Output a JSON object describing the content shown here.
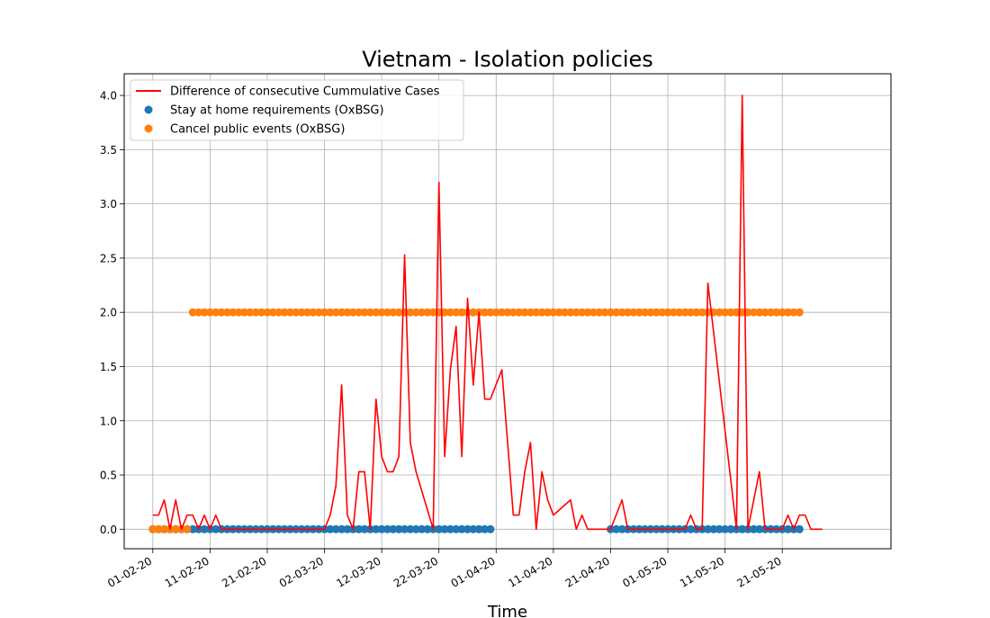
{
  "chart_data": {
    "type": "line",
    "title": "Vietnam - Isolation policies",
    "xlabel": "Time",
    "ylabel": "",
    "ylim": [
      -0.18,
      4.2
    ],
    "yticks": [
      0.0,
      0.5,
      1.0,
      1.5,
      2.0,
      2.5,
      3.0,
      3.5,
      4.0
    ],
    "ytick_labels": [
      "0.0",
      "0.5",
      "1.0",
      "1.5",
      "2.0",
      "2.5",
      "3.0",
      "3.5",
      "4.0"
    ],
    "xlim": [
      "2020-01-27",
      "2020-06-09"
    ],
    "xticks": [
      "2020-02-01",
      "2020-02-11",
      "2020-02-21",
      "2020-03-02",
      "2020-03-12",
      "2020-03-22",
      "2020-04-01",
      "2020-04-11",
      "2020-04-21",
      "2020-05-01",
      "2020-05-11",
      "2020-05-21"
    ],
    "xtick_labels": [
      "01-02-20",
      "11-02-20",
      "21-02-20",
      "02-03-20",
      "12-03-20",
      "22-03-20",
      "01-04-20",
      "11-04-20",
      "21-04-20",
      "01-05-20",
      "11-05-20",
      "21-05-20"
    ],
    "grid": true,
    "legend_position": "top-left",
    "series": [
      {
        "name": "Difference of consecutive Cummulative Cases",
        "kind": "line",
        "color": "#ff0000",
        "x": [
          "2020-02-01",
          "2020-02-02",
          "2020-02-03",
          "2020-02-04",
          "2020-02-05",
          "2020-02-06",
          "2020-02-07",
          "2020-02-08",
          "2020-02-09",
          "2020-02-10",
          "2020-02-11",
          "2020-02-12",
          "2020-02-13",
          "2020-02-14",
          "2020-02-29",
          "2020-03-01",
          "2020-03-02",
          "2020-03-03",
          "2020-03-04",
          "2020-03-05",
          "2020-03-06",
          "2020-03-07",
          "2020-03-08",
          "2020-03-09",
          "2020-03-10",
          "2020-03-11",
          "2020-03-12",
          "2020-03-13",
          "2020-03-14",
          "2020-03-15",
          "2020-03-16",
          "2020-03-17",
          "2020-03-18",
          "2020-03-21",
          "2020-03-22",
          "2020-03-23",
          "2020-03-24",
          "2020-03-25",
          "2020-03-26",
          "2020-03-27",
          "2020-03-28",
          "2020-03-29",
          "2020-03-30",
          "2020-03-31",
          "2020-04-02",
          "2020-04-04",
          "2020-04-05",
          "2020-04-06",
          "2020-04-07",
          "2020-04-08",
          "2020-04-09",
          "2020-04-10",
          "2020-04-11",
          "2020-04-14",
          "2020-04-15",
          "2020-04-16",
          "2020-04-17",
          "2020-04-18",
          "2020-04-21",
          "2020-04-23",
          "2020-04-24",
          "2020-05-04",
          "2020-05-05",
          "2020-05-06",
          "2020-05-07",
          "2020-05-08",
          "2020-05-13",
          "2020-05-14",
          "2020-05-15",
          "2020-05-17",
          "2020-05-18",
          "2020-05-21",
          "2020-05-22",
          "2020-05-23",
          "2020-05-24",
          "2020-05-25",
          "2020-05-26",
          "2020-05-27",
          "2020-05-28"
        ],
        "y": [
          0.13,
          0.13,
          0.27,
          0,
          0.27,
          0,
          0.13,
          0.13,
          0,
          0.13,
          0,
          0.13,
          0,
          0,
          0,
          0,
          0,
          0.13,
          0.4,
          1.33,
          0.13,
          0,
          0.53,
          0.53,
          0,
          1.2,
          0.67,
          0.53,
          0.53,
          0.67,
          2.53,
          0.8,
          0.53,
          0,
          3.2,
          0.67,
          1.47,
          1.87,
          0.67,
          2.13,
          1.33,
          2.0,
          1.2,
          1.2,
          1.47,
          0.13,
          0.13,
          0.53,
          0.8,
          0,
          0.53,
          0.27,
          0.13,
          0.27,
          0,
          0.13,
          0,
          0,
          0,
          0.27,
          0,
          0,
          0.13,
          0,
          0,
          2.27,
          0,
          4.0,
          0,
          0.53,
          0,
          0,
          0.13,
          0,
          0.13,
          0.13,
          0,
          0,
          0
        ]
      },
      {
        "name": "Stay at home requirements (OxBSG)",
        "kind": "scatter",
        "color": "#1f77b4",
        "segments": [
          {
            "start": "2020-02-01",
            "end": "2020-03-31",
            "value": 0
          },
          {
            "start": "2020-04-21",
            "end": "2020-05-24",
            "value": 0
          }
        ]
      },
      {
        "name": "Cancel public events (OxBSG)",
        "kind": "scatter",
        "color": "#ff7f0e",
        "segments": [
          {
            "start": "2020-02-01",
            "end": "2020-02-07",
            "value": 0
          },
          {
            "start": "2020-02-08",
            "end": "2020-05-24",
            "value": 2
          }
        ]
      }
    ]
  }
}
